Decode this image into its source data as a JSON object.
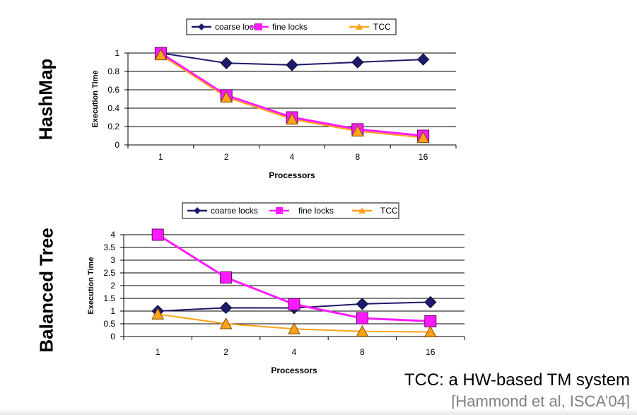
{
  "chart_data": [
    {
      "type": "line",
      "side_label": "HashMap",
      "categories": [
        "1",
        "2",
        "4",
        "8",
        "16"
      ],
      "xlabel": "Processors",
      "ylabel": "Execution Time",
      "ylim": [
        0,
        1
      ],
      "yticks": [
        "0",
        "0.2",
        "0.4",
        "0.6",
        "0.8",
        "1"
      ],
      "legend_placement": "top",
      "grid": true,
      "series": [
        {
          "name": "coarse locks",
          "values": [
            1.0,
            0.89,
            0.87,
            0.9,
            0.93
          ],
          "color": "#1e1a6b",
          "marker": "diamond"
        },
        {
          "name": "fine locks",
          "values": [
            1.0,
            0.54,
            0.3,
            0.17,
            0.1
          ],
          "color": "#ff1aff",
          "marker": "square"
        },
        {
          "name": "TCC",
          "values": [
            0.98,
            0.52,
            0.28,
            0.15,
            0.08
          ],
          "color": "#ffa216",
          "marker": "triangle"
        }
      ]
    },
    {
      "type": "line",
      "side_label": "Balanced Tree",
      "categories": [
        "1",
        "2",
        "4",
        "8",
        "16"
      ],
      "xlabel": "Processors",
      "ylabel": "Execution Time",
      "ylim": [
        0,
        4
      ],
      "yticks": [
        "0",
        "0.5",
        "1",
        "1.5",
        "2",
        "2.5",
        "3",
        "3.5",
        "4"
      ],
      "legend_placement": "top",
      "grid": true,
      "series": [
        {
          "name": "coarse locks",
          "values": [
            1.0,
            1.13,
            1.12,
            1.28,
            1.35
          ],
          "color": "#1e1a6b",
          "marker": "diamond"
        },
        {
          "name": "fine locks",
          "values": [
            4.0,
            2.32,
            1.27,
            0.72,
            0.6
          ],
          "color": "#ff1aff",
          "marker": "square"
        },
        {
          "name": "TCC",
          "values": [
            0.88,
            0.5,
            0.3,
            0.2,
            0.18
          ],
          "color": "#ffa216",
          "marker": "triangle"
        }
      ]
    }
  ],
  "caption": "TCC: a HW-based TM system",
  "citation": "[Hammond et al, ISCA’04]"
}
